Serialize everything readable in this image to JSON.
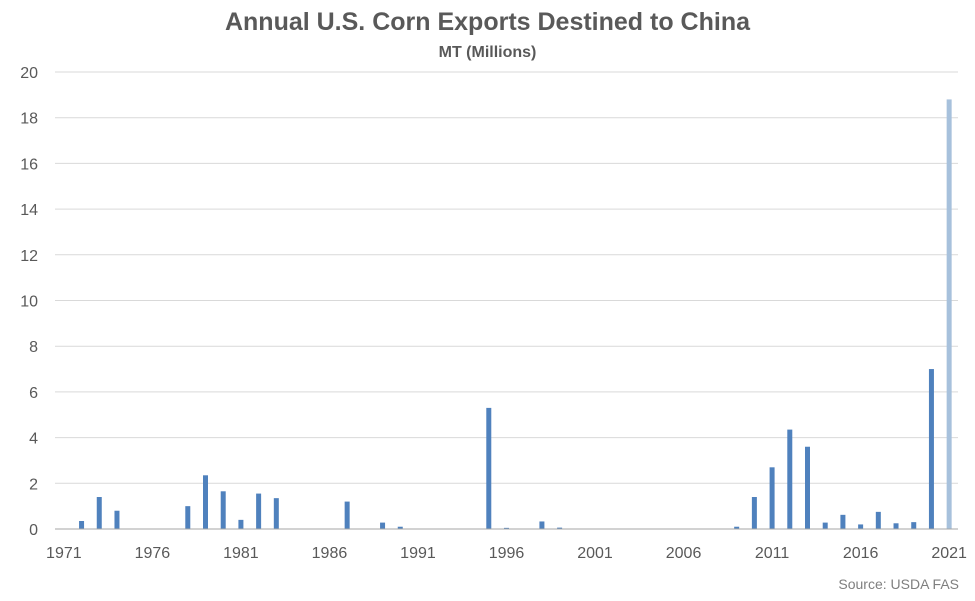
{
  "chart_data": {
    "type": "bar",
    "title": "Annual U.S. Corn Exports Destined to China",
    "subtitle": "MT (Millions)",
    "source": "Source: USDA FAS",
    "xlabel": "",
    "ylabel": "",
    "ylim": [
      0,
      20
    ],
    "yticks": [
      0,
      2,
      4,
      6,
      8,
      10,
      12,
      14,
      16,
      18,
      20
    ],
    "xticks": [
      1971,
      1976,
      1981,
      1986,
      1991,
      1996,
      2001,
      2006,
      2011,
      2016,
      2021
    ],
    "grid": true,
    "legend": "none",
    "colors": {
      "bar": "#4f81bd",
      "highlight": "#a7c1dc",
      "grid": "#d9d9d9",
      "axis": "#a6a6a6",
      "text": "#595959"
    },
    "highlight_year": 2021,
    "categories": [
      1971,
      1972,
      1973,
      1974,
      1975,
      1976,
      1977,
      1978,
      1979,
      1980,
      1981,
      1982,
      1983,
      1984,
      1985,
      1986,
      1987,
      1988,
      1989,
      1990,
      1991,
      1992,
      1993,
      1994,
      1995,
      1996,
      1997,
      1998,
      1999,
      2000,
      2001,
      2002,
      2003,
      2004,
      2005,
      2006,
      2007,
      2008,
      2009,
      2010,
      2011,
      2012,
      2013,
      2014,
      2015,
      2016,
      2017,
      2018,
      2019,
      2020,
      2021
    ],
    "values": [
      0,
      0.35,
      1.4,
      0.8,
      0,
      0,
      0,
      1.0,
      2.35,
      1.65,
      0.4,
      1.55,
      1.35,
      0,
      0,
      0,
      1.2,
      0,
      0.28,
      0.1,
      0,
      0,
      0,
      0,
      5.3,
      0.05,
      0,
      0.33,
      0.06,
      0,
      0,
      0,
      0,
      0,
      0,
      0,
      0,
      0,
      0.1,
      1.4,
      2.7,
      4.35,
      3.6,
      0.28,
      0.62,
      0.2,
      0.75,
      0.25,
      0.3,
      7.0,
      18.8
    ]
  }
}
